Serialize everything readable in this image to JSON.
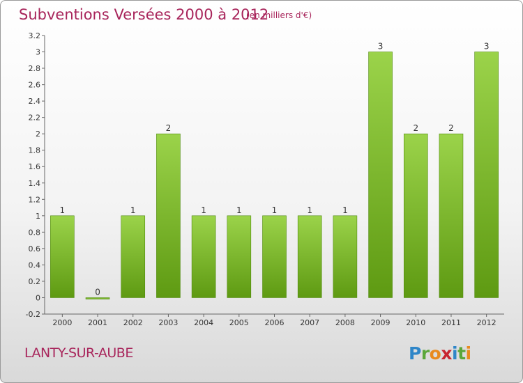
{
  "header": {
    "title": "Subventions Versées 2000 à 2012",
    "subtitle": "(en milliers d'€)"
  },
  "footer": {
    "place": "LANTY-SUR-AUBE",
    "logo_text": "Proxiti"
  },
  "colors": {
    "title": "#a8255b",
    "bar_top": "#9bd34a",
    "bar_bottom": "#5e9a12",
    "bar_edge": "#4f8a0c"
  },
  "chart_data": {
    "type": "bar",
    "title": "Subventions Versées 2000 à 2012",
    "subtitle": "(en milliers d'€)",
    "xlabel": "",
    "ylabel": "",
    "categories": [
      "2000",
      "2001",
      "2002",
      "2003",
      "2004",
      "2005",
      "2006",
      "2007",
      "2008",
      "2009",
      "2010",
      "2011",
      "2012"
    ],
    "values": [
      1,
      0,
      1,
      2,
      1,
      1,
      1,
      1,
      1,
      3,
      2,
      2,
      3
    ],
    "data_labels": [
      "1",
      "0",
      "1",
      "2",
      "1",
      "1",
      "1",
      "1",
      "1",
      "3",
      "2",
      "2",
      "3"
    ],
    "ylim": [
      -0.2,
      3.2
    ],
    "yticks": [
      -0.2,
      0,
      0.2,
      0.4,
      0.6,
      0.8,
      1,
      1.2,
      1.4,
      1.6,
      1.8,
      2,
      2.2,
      2.4,
      2.6,
      2.8,
      3,
      3.2
    ],
    "ytick_labels": [
      "-0.2",
      "0",
      "0.2",
      "0.4",
      "0.6",
      "0.8",
      "1",
      "1.2",
      "1.4",
      "1.6",
      "1.8",
      "2",
      "2.2",
      "2.4",
      "2.6",
      "2.8",
      "3",
      "3.2"
    ],
    "grid": false,
    "legend": "none"
  }
}
